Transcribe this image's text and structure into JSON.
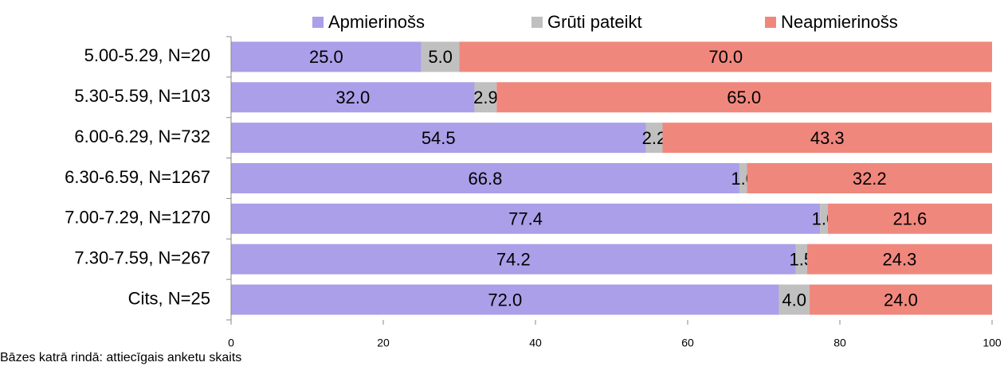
{
  "chart_data": {
    "type": "stacked-barh",
    "categories": [
      "5.00-5.29, N=20",
      "5.30-5.59, N=103",
      "6.00-6.29, N=732",
      "6.30-6.59, N=1267",
      "7.00-7.29, N=1270",
      "7.30-7.59, N=267",
      "Cits, N=25"
    ],
    "series": [
      {
        "name": "Apmierinošs",
        "color": "#aa9fe8",
        "values": [
          25.0,
          32.0,
          54.5,
          66.8,
          77.4,
          74.2,
          72.0
        ],
        "value_labels": [
          "25.0",
          "32.0",
          "54.5",
          "66.8",
          "77.4",
          "74.2",
          "72.0"
        ]
      },
      {
        "name": "Grūti pateikt",
        "color": "#c0c0c0",
        "values": [
          5.0,
          2.9,
          2.2,
          1.0,
          1.0,
          1.5,
          4.0
        ],
        "value_labels": [
          "5.0",
          "2.9",
          "2.2",
          "1.0",
          "1.0",
          "1.5",
          "4.0"
        ]
      },
      {
        "name": "Neapmierinošs",
        "color": "#f0877d",
        "values": [
          70.0,
          65.0,
          43.3,
          32.2,
          21.6,
          24.3,
          24.0
        ],
        "value_labels": [
          "70.0",
          "65.0",
          "43.3",
          "32.2",
          "21.6",
          "24.3",
          "24.0"
        ]
      }
    ],
    "xlim": [
      0,
      100
    ],
    "xticks": [
      0,
      20,
      40,
      60,
      80,
      100
    ],
    "legend": "top",
    "note": "Bāzes katrā rindā: attiecīgais anketu skaits"
  }
}
